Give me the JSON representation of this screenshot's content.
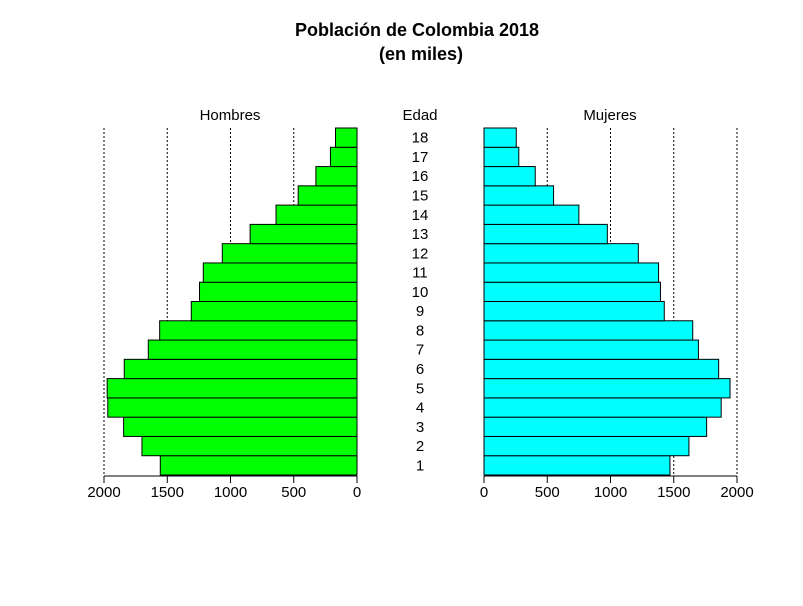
{
  "chart_data": {
    "type": "bar",
    "orientation": "horizontal-pyramid",
    "title": "Población de Colombia 2018",
    "subtitle": "(en miles)",
    "center_label": "Edad",
    "categories": [
      "1",
      "2",
      "3",
      "4",
      "5",
      "6",
      "7",
      "8",
      "9",
      "10",
      "11",
      "12",
      "13",
      "14",
      "15",
      "16",
      "17",
      "18"
    ],
    "series": [
      {
        "name": "Hombres",
        "color": "#00FF00",
        "values": [
          1555,
          1700,
          1845,
          1970,
          1975,
          1840,
          1650,
          1560,
          1310,
          1245,
          1215,
          1065,
          845,
          640,
          465,
          325,
          210,
          170
        ]
      },
      {
        "name": "Mujeres",
        "color": "#00FFFF",
        "values": [
          1470,
          1620,
          1760,
          1875,
          1945,
          1855,
          1695,
          1650,
          1425,
          1395,
          1380,
          1220,
          975,
          750,
          550,
          405,
          275,
          255
        ]
      }
    ],
    "x_ticks": [
      0,
      500,
      1000,
      1500,
      2000
    ],
    "xlim": [
      0,
      2000
    ],
    "grid": "vertical dotted lines at 500, 1000, 1500, 2000",
    "bar_outline_color": "#000000"
  }
}
